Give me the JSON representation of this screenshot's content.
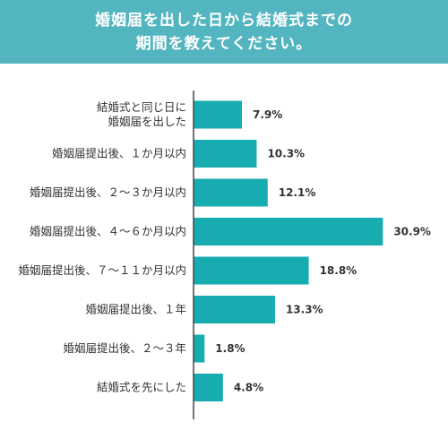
{
  "title": {
    "line1": "婚姻届を出した日から結婚式までの",
    "line2": "期間を教えてください。"
  },
  "colors": {
    "header_bg": "#53b5bf",
    "bar": "#17adb0",
    "axis": "#444444",
    "text": "#333333"
  },
  "chart_data": {
    "type": "bar",
    "orientation": "horizontal",
    "title": "婚姻届を出した日から結婚式までの期間を教えてください。",
    "categories": [
      "結婚式と同じ日に\n婚姻届を出した",
      "婚姻届提出後、１か月以内",
      "婚姻届提出後、２〜３か月以内",
      "婚姻届提出後、４〜６か月以内",
      "婚姻届提出後、７〜１１か月以内",
      "婚姻届提出後、１年",
      "婚姻届提出後、２〜３年",
      "結婚式を先にした"
    ],
    "values": [
      7.9,
      10.3,
      12.1,
      30.9,
      18.8,
      13.3,
      1.8,
      4.8
    ],
    "value_labels": [
      "7.9%",
      "10.3%",
      "12.1%",
      "30.9%",
      "18.8%",
      "13.3%",
      "1.8%",
      "4.8%"
    ],
    "unit": "%",
    "xlim": [
      0,
      31
    ],
    "grid": false,
    "legend": "none"
  }
}
